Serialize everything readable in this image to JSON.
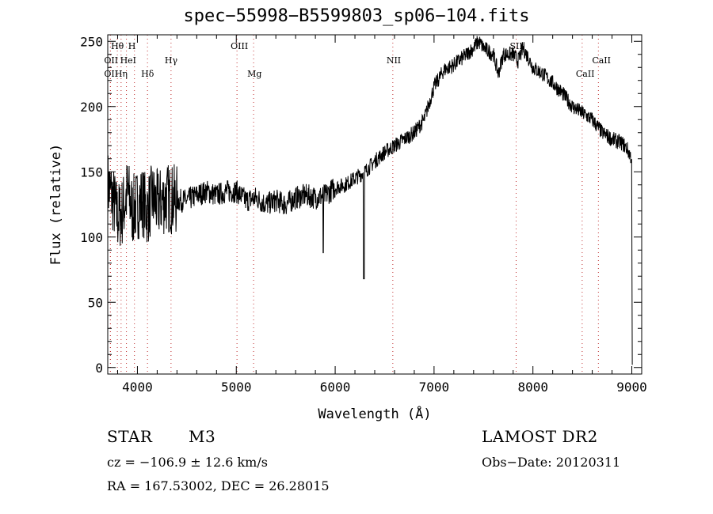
{
  "chart_data": {
    "type": "line",
    "title": "spec−55998−B5599803_sp06−104.fits",
    "xlabel": "Wavelength (Å)",
    "ylabel": "Flux (relative)",
    "xlim": [
      3700,
      9100
    ],
    "ylim": [
      -5,
      255
    ],
    "x_ticks": [
      4000,
      5000,
      6000,
      7000,
      8000,
      9000
    ],
    "y_ticks": [
      0,
      50,
      100,
      150,
      200,
      250
    ],
    "series": [
      {
        "x": [
          3700,
          3750,
          3800,
          3850,
          3900,
          3950,
          4000,
          4050,
          4100,
          4150,
          4200,
          4300,
          4400,
          4500,
          4600,
          4700,
          4800,
          4900,
          5000,
          5100,
          5200,
          5300,
          5400,
          5500,
          5600,
          5700,
          5800,
          5900,
          6000,
          6100,
          6200,
          6300,
          6400,
          6500,
          6600,
          6700,
          6800,
          6900,
          7000,
          7100,
          7200,
          7300,
          7400,
          7450,
          7500,
          7600,
          7650,
          7700,
          7800,
          7850,
          7900,
          7950,
          8000,
          8100,
          8200,
          8300,
          8400,
          8500,
          8600,
          8700,
          8800,
          8900,
          8950,
          9000
        ],
        "y": [
          140,
          130,
          115,
          120,
          135,
          120,
          125,
          128,
          120,
          130,
          125,
          130,
          128,
          128,
          132,
          135,
          132,
          135,
          135,
          128,
          130,
          125,
          128,
          125,
          130,
          132,
          130,
          132,
          138,
          140,
          145,
          150,
          158,
          165,
          170,
          175,
          180,
          190,
          215,
          228,
          232,
          238,
          245,
          250,
          245,
          240,
          225,
          240,
          240,
          235,
          245,
          238,
          230,
          225,
          218,
          210,
          200,
          195,
          190,
          180,
          175,
          172,
          168,
          160
        ]
      }
    ],
    "annotations": [
      {
        "label": "Hθ",
        "x": 3797
      },
      {
        "label": "H",
        "x": 3970
      },
      {
        "label": "OII",
        "x": 3727
      },
      {
        "label": "HeI",
        "x": 3889
      },
      {
        "label": "Hγ",
        "x": 4340
      },
      {
        "label": "OIII",
        "x": 5007
      },
      {
        "label": "NII",
        "x": 6583
      },
      {
        "label": "SII",
        "x": 7830
      },
      {
        "label": "CaII",
        "x": 8662
      },
      {
        "label": "OII",
        "x": 3727
      },
      {
        "label": "Hη",
        "x": 3835
      },
      {
        "label": "Hδ",
        "x": 4102
      },
      {
        "label": "Mg",
        "x": 5175
      },
      {
        "label": "CaII",
        "x": 8498
      }
    ]
  },
  "info": {
    "class": "STAR",
    "subclass": "M3",
    "survey": "LAMOST DR2",
    "cz": "cz = −106.9 ± 12.6 km/s",
    "obs_date": "Obs−Date: 20120311",
    "radec": "RA = 167.53002, DEC =  26.28015"
  }
}
